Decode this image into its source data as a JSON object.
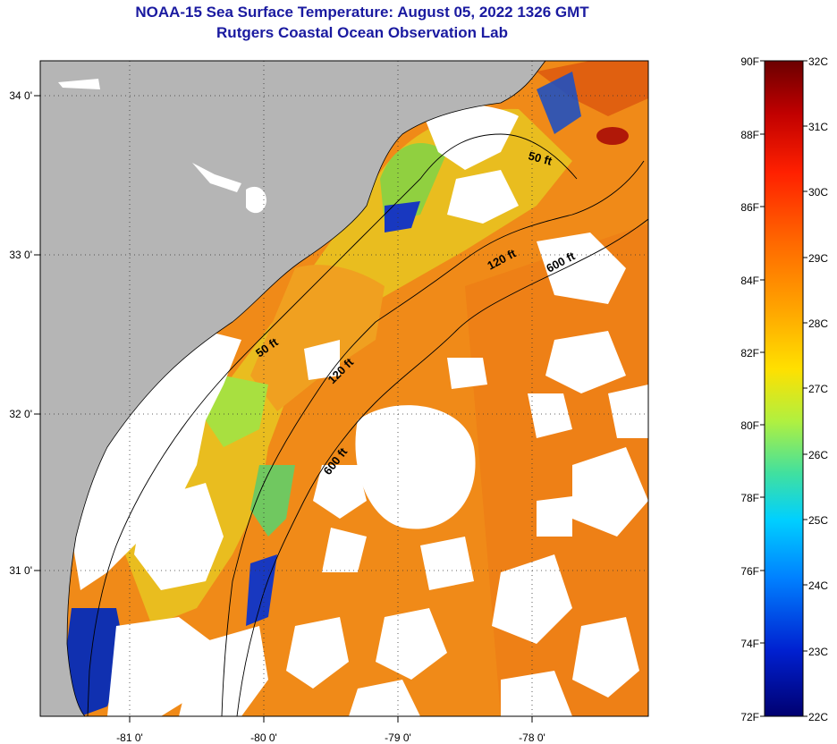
{
  "title": {
    "line1": "NOAA-15 Sea Surface Temperature:  August 05, 2022 1326 GMT",
    "line2": "Rutgers Coastal Ocean Observation Lab"
  },
  "map": {
    "lon_labels": [
      "-81 0'",
      "-80 0'",
      "-79 0'",
      "-78 0'"
    ],
    "lat_labels": [
      "34 0'",
      "33 0'",
      "32 0'",
      "31 0'"
    ],
    "contour_labels": [
      "50 ft",
      "120 ft",
      "600 ft",
      "50 ft",
      "120 ft",
      "600 ft"
    ],
    "colors": {
      "land": "#b5b5b5",
      "cloud": "#ffffff",
      "warm_sst": "#f08a18",
      "mid_sst": "#e8c020",
      "cool_sst": "#90d040",
      "cold_sst": "#1030b0"
    }
  },
  "colorbar": {
    "fahrenheit_labels": [
      "90F",
      "88F",
      "86F",
      "84F",
      "82F",
      "80F",
      "78F",
      "76F",
      "74F",
      "72F"
    ],
    "celsius_labels": [
      "32C",
      "31C",
      "30C",
      "29C",
      "28C",
      "27C",
      "26C",
      "25C",
      "24C",
      "23C",
      "22C"
    ],
    "gradient_top_to_bottom": [
      "#6b0000",
      "#c00000",
      "#ff2000",
      "#ff6a00",
      "#ffa500",
      "#ffe000",
      "#b0f040",
      "#40e0a0",
      "#00d0ff",
      "#0080ff",
      "#0020d0",
      "#000070"
    ]
  }
}
